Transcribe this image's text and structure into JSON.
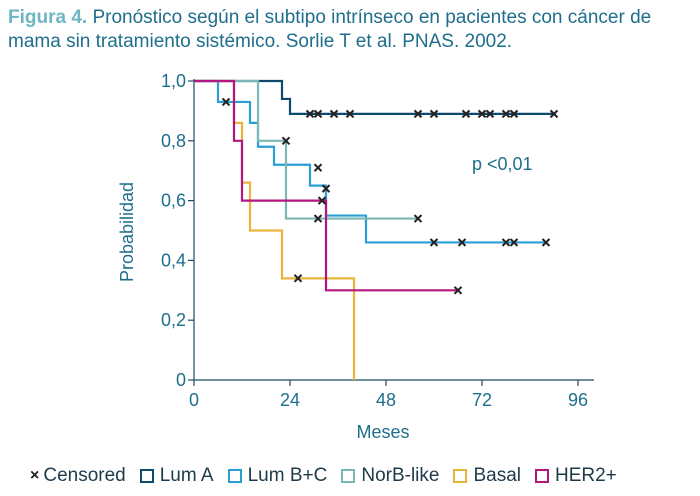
{
  "caption": {
    "figure_label": "Figura 4.",
    "text": "Pronóstico según el subtipo intrínseco en pacientes con cáncer de mama sin tratamiento sistémico. Sorlie T et al. PNAS. 2002."
  },
  "chart_data": {
    "type": "line",
    "subtype": "kaplan-meier-step",
    "xlabel": "Meses",
    "ylabel": "Probabilidad",
    "xlim": [
      0,
      100
    ],
    "ylim": [
      0,
      1.0
    ],
    "xticks": [
      "0",
      "24",
      "48",
      "72",
      "96"
    ],
    "yticks": [
      "0",
      "0,2",
      "0,4",
      "0,6",
      "0,8",
      "1,0"
    ],
    "annotation": "p <0,01",
    "legend_position": "bottom",
    "censored_label": "Censored",
    "series": [
      {
        "name": "Lum A",
        "color": "#0d4a6b",
        "steps": [
          [
            0,
            1.0
          ],
          [
            22,
            0.94
          ],
          [
            24,
            0.89
          ],
          [
            90,
            0.89
          ]
        ],
        "censored": [
          [
            29,
            0.89
          ],
          [
            31,
            0.89
          ],
          [
            35,
            0.89
          ],
          [
            39,
            0.89
          ],
          [
            56,
            0.89
          ],
          [
            60,
            0.89
          ],
          [
            68,
            0.89
          ],
          [
            72,
            0.89
          ],
          [
            74,
            0.89
          ],
          [
            78,
            0.89
          ],
          [
            80,
            0.89
          ],
          [
            90,
            0.89
          ]
        ]
      },
      {
        "name": "Lum B+C",
        "color": "#2a9fd6",
        "steps": [
          [
            0,
            1.0
          ],
          [
            6,
            0.93
          ],
          [
            14,
            0.86
          ],
          [
            16,
            0.78
          ],
          [
            20,
            0.72
          ],
          [
            29,
            0.65
          ],
          [
            33,
            0.55
          ],
          [
            43,
            0.46
          ],
          [
            88,
            0.46
          ]
        ],
        "censored": [
          [
            8,
            0.93
          ],
          [
            31,
            0.71
          ],
          [
            60,
            0.46
          ],
          [
            67,
            0.46
          ],
          [
            78,
            0.46
          ],
          [
            80,
            0.46
          ],
          [
            88,
            0.46
          ]
        ]
      },
      {
        "name": "NorB-like",
        "color": "#7ab8b5",
        "steps": [
          [
            0,
            1.0
          ],
          [
            16,
            0.8
          ],
          [
            23,
            0.54
          ],
          [
            56,
            0.54
          ]
        ],
        "censored": [
          [
            23,
            0.8
          ],
          [
            31,
            0.54
          ],
          [
            56,
            0.54
          ]
        ]
      },
      {
        "name": "Basal",
        "color": "#e8b43c",
        "steps": [
          [
            0,
            1.0
          ],
          [
            10,
            0.86
          ],
          [
            12,
            0.66
          ],
          [
            14,
            0.5
          ],
          [
            22,
            0.34
          ],
          [
            40,
            0.34
          ],
          [
            40,
            0.0
          ]
        ],
        "censored": [
          [
            26,
            0.34
          ]
        ]
      },
      {
        "name": "HER2+",
        "color": "#b3167e",
        "steps": [
          [
            0,
            1.0
          ],
          [
            10,
            0.8
          ],
          [
            12,
            0.6
          ],
          [
            33,
            0.3
          ],
          [
            66,
            0.3
          ]
        ],
        "censored": [
          [
            32,
            0.6
          ],
          [
            33,
            0.64
          ],
          [
            66,
            0.3
          ]
        ]
      }
    ]
  }
}
